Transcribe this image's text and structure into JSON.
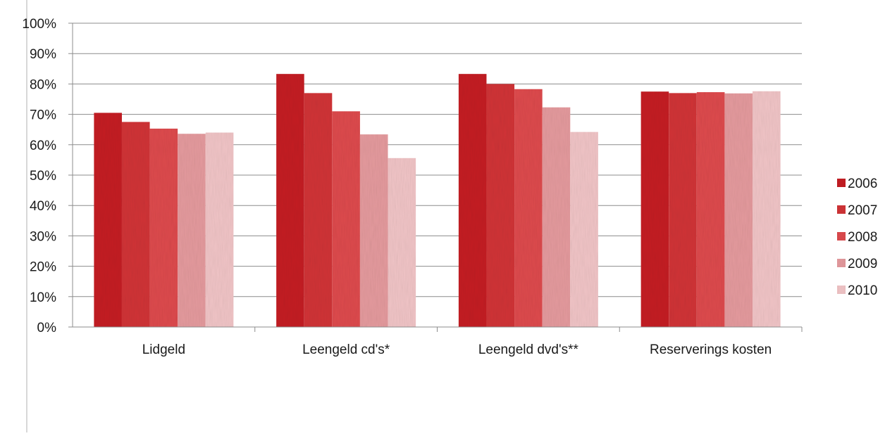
{
  "chart_data": {
    "type": "bar",
    "title": "",
    "xlabel": "",
    "ylabel": "",
    "categories": [
      "Lidgeld",
      "Leengeld cd's*",
      "Leengeld dvd's**",
      "Reserverings kosten"
    ],
    "series": [
      {
        "name": "2006",
        "color": "#c41e24",
        "values": [
          70.5,
          83.3,
          83.3,
          77.5
        ]
      },
      {
        "name": "2007",
        "color": "#d03337",
        "values": [
          67.5,
          77.0,
          80.0,
          77.0
        ]
      },
      {
        "name": "2008",
        "color": "#dd4a4d",
        "values": [
          65.3,
          71.0,
          78.3,
          77.3
        ]
      },
      {
        "name": "2009",
        "color": "#e49a9d",
        "values": [
          63.6,
          63.4,
          72.3,
          76.9
        ]
      },
      {
        "name": "2010",
        "color": "#f0c4c6",
        "values": [
          64.0,
          55.6,
          64.2,
          77.6
        ]
      }
    ],
    "ylim": [
      0,
      100
    ],
    "yticks": [
      "0%",
      "10%",
      "20%",
      "30%",
      "40%",
      "50%",
      "60%",
      "70%",
      "80%",
      "90%",
      "100%"
    ],
    "ytick_values": [
      0,
      10,
      20,
      30,
      40,
      50,
      60,
      70,
      80,
      90,
      100
    ],
    "grid": true,
    "legend_position": "right"
  }
}
